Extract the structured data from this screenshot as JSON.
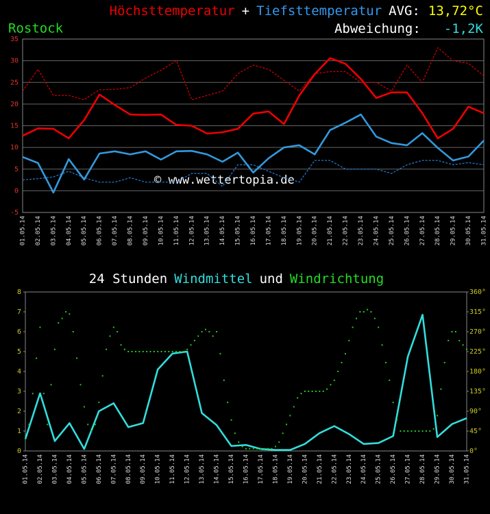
{
  "chart_data": [
    {
      "type": "line",
      "location": "Rostock",
      "legend_separator": "+",
      "avg_label": "AVG:",
      "avg_value": "13,72°C",
      "deviation_label": "Abweichung:",
      "deviation_value": "-1,2K",
      "watermark": "© www.wettertopia.de",
      "categories": [
        "01.05.14",
        "02.05.14",
        "03.05.14",
        "04.05.14",
        "05.05.14",
        "06.05.14",
        "07.05.14",
        "08.05.14",
        "09.05.14",
        "10.05.14",
        "11.05.14",
        "12.05.14",
        "13.05.14",
        "14.05.14",
        "15.05.14",
        "16.05.14",
        "17.05.14",
        "18.05.14",
        "19.05.14",
        "20.05.14",
        "21.05.14",
        "22.05.14",
        "23.05.14",
        "24.05.14",
        "25.05.14",
        "26.05.14",
        "27.05.14",
        "28.05.14",
        "29.05.14",
        "30.05.14",
        "31.05.14"
      ],
      "series": [
        {
          "color": "#cc0000",
          "dashed": true,
          "values": [
            23,
            28,
            22,
            22,
            21,
            23.3,
            23.4,
            23.8,
            26,
            27.8,
            30,
            21,
            22,
            23,
            27,
            29,
            28,
            25.5,
            23,
            27,
            27.5,
            27.5,
            25,
            25,
            23,
            29,
            25,
            33,
            30,
            29.4,
            26.5
          ]
        },
        {
          "color": "#2277cc",
          "dashed": true,
          "values": [
            2.5,
            2.8,
            3.2,
            4.5,
            3,
            2,
            2,
            3,
            2,
            2,
            2,
            4,
            4,
            1,
            6,
            6,
            4.5,
            3,
            2,
            7,
            7,
            5,
            5,
            5,
            4,
            6,
            7,
            7,
            6,
            6.5,
            6
          ]
        },
        {
          "name": "Höchsttemperatur",
          "color": "#ee0000",
          "values": [
            12.7,
            14.4,
            14.3,
            12.1,
            16.3,
            22.2,
            19.8,
            17.6,
            17.5,
            17.6,
            15.2,
            15.0,
            13.2,
            13.5,
            14.3,
            17.8,
            18.3,
            15.4,
            22,
            26.9,
            30.6,
            29.3,
            25.8,
            21.4,
            22.7,
            22.7,
            17.9,
            12.1,
            14.3,
            19.4,
            17.9
          ]
        },
        {
          "name": "Tiefsttemperatur",
          "color": "#3399dd",
          "values": [
            7.8,
            6.4,
            -0.4,
            7.3,
            2.6,
            8.6,
            9.1,
            8.4,
            9.1,
            7.2,
            9.1,
            9.2,
            8.4,
            6.7,
            8.8,
            4.2,
            7.5,
            10,
            10.5,
            8.4,
            14,
            15.7,
            17.6,
            12.5,
            11,
            10.5,
            13.3,
            9.9,
            7,
            7.9,
            11.6
          ]
        }
      ],
      "ylim": [
        -5,
        35
      ],
      "yticks": [
        35,
        30,
        25,
        20,
        15,
        10,
        5,
        0,
        -5
      ],
      "grid": true
    },
    {
      "type": "line",
      "title_prefix": "24 Stunden",
      "title_joiner": "und",
      "categories": [
        "01.05.14",
        "02.05.14",
        "03.05.14",
        "04.05.14",
        "05.05.14",
        "06.05.14",
        "07.05.14",
        "08.05.14",
        "09.05.14",
        "10.05.14",
        "11.05.14",
        "12.05.14",
        "13.05.14",
        "14.05.14",
        "15.05.14",
        "16.05.14",
        "17.05.14",
        "18.05.14",
        "19.05.14",
        "20.05.14",
        "21.05.14",
        "22.05.14",
        "23.05.14",
        "24.05.14",
        "25.05.14",
        "26.05.14",
        "27.05.14",
        "28.05.14",
        "29.05.14",
        "30.05.14",
        "31.05.14"
      ],
      "series": [
        {
          "name": "Windmittel",
          "color": "#33dddd",
          "values": [
            0.6,
            2.9,
            0.5,
            1.4,
            0.1,
            2.0,
            2.4,
            1.2,
            1.4,
            4.1,
            4.9,
            5.0,
            1.9,
            1.3,
            0.25,
            0.3,
            0.1,
            0.05,
            0.05,
            0.35,
            0.9,
            1.25,
            0.85,
            0.35,
            0.4,
            0.75,
            4.75,
            6.85,
            0.7,
            1.35,
            1.65
          ]
        },
        {
          "name": "Windrichtung",
          "color": "#22cc22",
          "axis": "y2",
          "marker": "dot",
          "x": [
            0,
            0.25,
            0.5,
            0.75,
            1,
            1.25,
            1.5,
            1.75,
            2,
            2.25,
            2.5,
            2.75,
            3,
            3.25,
            3.5,
            3.75,
            4,
            4.25,
            4.5,
            4.75,
            5,
            5.25,
            5.5,
            5.75,
            6,
            6.25,
            6.5,
            6.75,
            7,
            7.25,
            7.5,
            7.75,
            8,
            8.25,
            8.5,
            8.75,
            9,
            9.25,
            9.5,
            9.75,
            10,
            10.25,
            10.5,
            10.75,
            11,
            11.25,
            11.5,
            11.75,
            12,
            12.25,
            12.5,
            12.75,
            13,
            13.25,
            13.5,
            13.75,
            14,
            14.25,
            14.5,
            14.75,
            15,
            15.25,
            15.5,
            15.75,
            16,
            16.25,
            16.5,
            16.75,
            17,
            17.25,
            17.5,
            17.75,
            18,
            18.25,
            18.5,
            18.75,
            19,
            19.25,
            19.5,
            19.75,
            20,
            20.25,
            20.5,
            20.75,
            21,
            21.25,
            21.5,
            21.75,
            22,
            22.25,
            22.5,
            22.75,
            23,
            23.25,
            23.5,
            23.75,
            24,
            24.25,
            24.5,
            24.75,
            25,
            25.25,
            25.5,
            25.75,
            26,
            26.25,
            26.5,
            26.75,
            27,
            27.25,
            27.5,
            27.75,
            28,
            28.25,
            28.5,
            28.75,
            29,
            29.25,
            29.5,
            29.75,
            30
          ],
          "values": [
            30,
            60,
            130,
            210,
            280,
            130,
            60,
            150,
            230,
            290,
            300,
            315,
            310,
            270,
            210,
            150,
            100,
            60,
            45,
            60,
            110,
            170,
            230,
            260,
            280,
            270,
            240,
            230,
            225,
            225,
            225,
            225,
            225,
            225,
            225,
            225,
            225,
            225,
            225,
            225,
            225,
            225,
            225,
            225,
            230,
            240,
            250,
            260,
            270,
            275,
            270,
            260,
            270,
            220,
            160,
            110,
            70,
            40,
            20,
            10,
            5,
            5,
            5,
            5,
            5,
            5,
            5,
            5,
            10,
            20,
            40,
            60,
            80,
            100,
            120,
            130,
            135,
            135,
            135,
            135,
            135,
            135,
            140,
            150,
            160,
            180,
            200,
            220,
            250,
            280,
            300,
            315,
            315,
            320,
            315,
            300,
            280,
            240,
            200,
            160,
            110,
            70,
            45,
            45,
            45,
            45,
            45,
            45,
            45,
            45,
            45,
            50,
            80,
            140,
            200,
            250,
            270,
            270,
            250,
            240,
            230
          ]
        }
      ],
      "ylim": [
        0,
        8
      ],
      "yticks": [
        8,
        7,
        6,
        5,
        4,
        3,
        2,
        1,
        0
      ],
      "y2lim": [
        0,
        360
      ],
      "y2ticks": [
        {
          "value": 360,
          "label": "360°"
        },
        {
          "value": 315,
          "label": "315°"
        },
        {
          "value": 270,
          "label": "270°"
        },
        {
          "value": 225,
          "label": "225°"
        },
        {
          "value": 180,
          "label": "180°"
        },
        {
          "value": 135,
          "label": "135°"
        },
        {
          "value": 90,
          "label": "90°"
        },
        {
          "value": 45,
          "label": "45°"
        },
        {
          "value": 0,
          "label": "0°"
        }
      ],
      "grid": false
    }
  ]
}
